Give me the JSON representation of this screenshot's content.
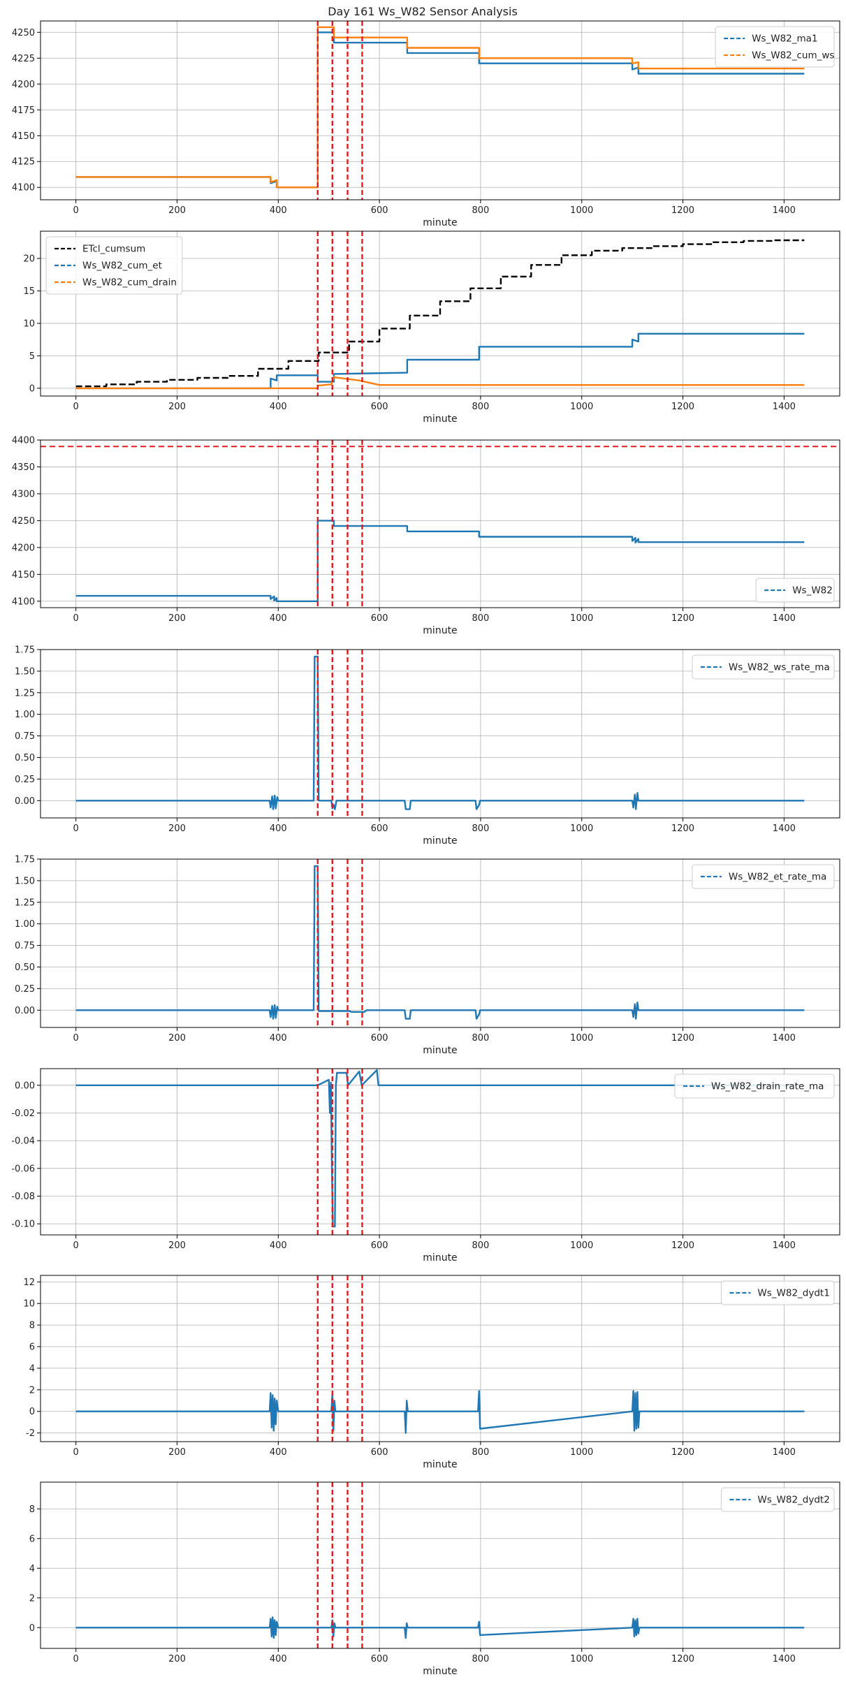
{
  "figure": {
    "title": "Day 161 Ws_W82 Sensor Analysis"
  },
  "colors": {
    "blue": "#1f77b4",
    "orange": "#ff7f0e",
    "black": "#000000",
    "red": "#e41a1c",
    "grid": "#b0b0b0"
  },
  "event_lines_x": [
    478,
    507,
    537,
    566
  ],
  "chart_data": [
    {
      "type": "line",
      "xlabel": "minute",
      "xlim": [
        -70,
        1510
      ],
      "ylim": [
        4088,
        4261
      ],
      "xticks": [
        0,
        200,
        400,
        600,
        800,
        1000,
        1200,
        1400
      ],
      "yticks": [
        4100,
        4125,
        4150,
        4175,
        4200,
        4225,
        4250
      ],
      "legend_loc": "upper right",
      "series": [
        {
          "name": "Ws_W82_ma1",
          "color": "blue",
          "x": [
            0,
            385,
            385,
            397,
            397,
            478,
            478,
            510,
            510,
            655,
            655,
            797,
            797,
            1100,
            1100,
            1112,
            1112,
            1440
          ],
          "y": [
            4110,
            4110,
            4104,
            4106,
            4100,
            4100,
            4250,
            4250,
            4240,
            4240,
            4230,
            4230,
            4220,
            4220,
            4214,
            4216,
            4210,
            4210
          ]
        },
        {
          "name": "Ws_W82_cum_ws",
          "color": "orange",
          "x": [
            0,
            385,
            385,
            397,
            397,
            478,
            478,
            510,
            510,
            655,
            655,
            797,
            797,
            1100,
            1100,
            1112,
            1112,
            1440
          ],
          "y": [
            4110,
            4110,
            4105,
            4107,
            4100,
            4100,
            4255,
            4255,
            4245,
            4245,
            4235,
            4235,
            4225,
            4225,
            4220,
            4221,
            4215,
            4215
          ]
        }
      ]
    },
    {
      "type": "line",
      "xlabel": "minute",
      "xlim": [
        -70,
        1510
      ],
      "ylim": [
        -1.2,
        24.2
      ],
      "xticks": [
        0,
        200,
        400,
        600,
        800,
        1000,
        1200,
        1400
      ],
      "yticks": [
        0,
        5,
        10,
        15,
        20
      ],
      "legend_loc": "upper left",
      "series": [
        {
          "name": "ETcl_cumsum",
          "color": "black",
          "x": [
            0,
            60,
            60,
            120,
            120,
            180,
            180,
            240,
            240,
            300,
            300,
            360,
            360,
            420,
            420,
            480,
            480,
            540,
            540,
            600,
            600,
            660,
            660,
            720,
            720,
            780,
            780,
            840,
            840,
            900,
            900,
            960,
            960,
            1020,
            1020,
            1080,
            1080,
            1140,
            1140,
            1200,
            1200,
            1260,
            1260,
            1320,
            1320,
            1380,
            1380,
            1440
          ],
          "y": [
            0.3,
            0.3,
            0.6,
            0.6,
            1.0,
            1.0,
            1.3,
            1.3,
            1.6,
            1.6,
            1.9,
            1.9,
            3.0,
            3.0,
            4.2,
            4.2,
            5.5,
            5.5,
            7.2,
            7.2,
            9.2,
            9.2,
            11.2,
            11.2,
            13.4,
            13.4,
            15.4,
            15.4,
            17.2,
            17.2,
            19.0,
            19.0,
            20.5,
            20.5,
            21.2,
            21.2,
            21.6,
            21.6,
            21.9,
            21.9,
            22.2,
            22.2,
            22.5,
            22.5,
            22.7,
            22.7,
            22.8,
            22.8
          ]
        },
        {
          "name": "Ws_W82_cum_et",
          "color": "blue",
          "x": [
            0,
            385,
            385,
            397,
            397,
            478,
            478,
            510,
            510,
            655,
            655,
            797,
            797,
            1100,
            1100,
            1112,
            1112,
            1440
          ],
          "y": [
            0,
            0,
            1.5,
            1.2,
            2.0,
            2.0,
            1.0,
            1.0,
            2.2,
            2.4,
            4.4,
            4.4,
            6.4,
            6.4,
            7.5,
            7.2,
            8.4,
            8.4
          ]
        },
        {
          "name": "Ws_W82_cum_drain",
          "color": "orange",
          "x": [
            0,
            478,
            478,
            505,
            510,
            560,
            600,
            1440
          ],
          "y": [
            0,
            0,
            0.4,
            0.6,
            1.7,
            1.2,
            0.5,
            0.5
          ]
        }
      ]
    },
    {
      "type": "line",
      "xlabel": "minute",
      "xlim": [
        -70,
        1510
      ],
      "ylim": [
        4088,
        4400
      ],
      "xticks": [
        0,
        200,
        400,
        600,
        800,
        1000,
        1200,
        1400
      ],
      "yticks": [
        4100,
        4150,
        4200,
        4250,
        4300,
        4350,
        4400
      ],
      "legend_loc": "lower right",
      "hline": 4388,
      "series": [
        {
          "name": "Ws_W82",
          "color": "blue",
          "x": [
            0,
            385,
            385,
            392,
            392,
            397,
            397,
            478,
            478,
            510,
            510,
            655,
            655,
            797,
            797,
            1100,
            1100,
            1106,
            1106,
            1112,
            1112,
            1440
          ],
          "y": [
            4110,
            4110,
            4104,
            4109,
            4101,
            4106,
            4100,
            4100,
            4250,
            4250,
            4240,
            4240,
            4230,
            4230,
            4220,
            4220,
            4212,
            4218,
            4209,
            4216,
            4210,
            4210
          ]
        }
      ]
    },
    {
      "type": "line",
      "xlabel": "minute",
      "xlim": [
        -70,
        1510
      ],
      "ylim": [
        -0.2,
        1.75
      ],
      "xticks": [
        0,
        200,
        400,
        600,
        800,
        1000,
        1200,
        1400
      ],
      "yticks": [
        0.0,
        0.25,
        0.5,
        0.75,
        1.0,
        1.25,
        1.5,
        1.75
      ],
      "legend_loc": "upper right",
      "series": [
        {
          "name": "Ws_W82_ws_rate_ma",
          "color": "blue",
          "x": [
            0,
            383,
            385,
            388,
            390,
            393,
            395,
            398,
            400,
            470,
            472,
            478,
            480,
            505,
            507,
            510,
            512,
            515,
            650,
            652,
            660,
            662,
            790,
            792,
            797,
            799,
            1100,
            1102,
            1105,
            1107,
            1110,
            1112,
            1440
          ],
          "y": [
            0,
            0,
            -0.08,
            0.05,
            -0.1,
            0.06,
            -0.09,
            0.04,
            0,
            0,
            1.67,
            1.67,
            0,
            0,
            -0.09,
            -0.05,
            -0.1,
            0,
            0,
            -0.1,
            -0.1,
            0,
            0,
            -0.1,
            -0.05,
            0,
            0,
            -0.08,
            0.07,
            -0.1,
            0.09,
            0,
            0
          ]
        }
      ]
    },
    {
      "type": "line",
      "xlabel": "minute",
      "xlim": [
        -70,
        1510
      ],
      "ylim": [
        -0.2,
        1.75
      ],
      "xticks": [
        0,
        200,
        400,
        600,
        800,
        1000,
        1200,
        1400
      ],
      "yticks": [
        0.0,
        0.25,
        0.5,
        0.75,
        1.0,
        1.25,
        1.5,
        1.75
      ],
      "legend_loc": "upper right",
      "series": [
        {
          "name": "Ws_W82_et_rate_ma",
          "color": "blue",
          "x": [
            0,
            383,
            385,
            388,
            390,
            393,
            395,
            398,
            400,
            470,
            472,
            478,
            480,
            540,
            545,
            570,
            575,
            650,
            652,
            660,
            662,
            790,
            792,
            797,
            799,
            1100,
            1102,
            1105,
            1107,
            1110,
            1112,
            1440
          ],
          "y": [
            0,
            0,
            -0.08,
            0.05,
            -0.1,
            0.06,
            -0.09,
            0.04,
            0,
            0,
            1.67,
            1.67,
            -0.01,
            -0.01,
            -0.02,
            -0.02,
            0,
            0,
            -0.1,
            -0.1,
            0,
            0,
            -0.1,
            -0.05,
            0,
            0,
            -0.08,
            0.07,
            -0.1,
            0.09,
            0,
            0
          ]
        }
      ]
    },
    {
      "type": "line",
      "xlabel": "minute",
      "xlim": [
        -70,
        1510
      ],
      "ylim": [
        -0.108,
        0.012
      ],
      "xticks": [
        0,
        200,
        400,
        600,
        800,
        1000,
        1200,
        1400
      ],
      "yticks": [
        0.0,
        -0.02,
        -0.04,
        -0.06,
        -0.08,
        -0.1
      ],
      "legend_loc": "upper right",
      "series": [
        {
          "name": "Ws_W82_drain_rate_ma",
          "color": "blue",
          "x": [
            0,
            478,
            500,
            502,
            504,
            506,
            508,
            512,
            514,
            516,
            520,
            535,
            538,
            560,
            565,
            595,
            598,
            1440
          ],
          "y": [
            0,
            0,
            0.004,
            -0.02,
            0.002,
            -0.06,
            -0.102,
            -0.102,
            0.0,
            0.009,
            0.009,
            0.009,
            0.0,
            0.01,
            0.0,
            0.011,
            0,
            0
          ]
        }
      ]
    },
    {
      "type": "line",
      "xlabel": "minute",
      "xlim": [
        -70,
        1510
      ],
      "ylim": [
        -2.8,
        12.6
      ],
      "xticks": [
        0,
        200,
        400,
        600,
        800,
        1000,
        1200,
        1400
      ],
      "yticks": [
        -2,
        0,
        2,
        4,
        6,
        8,
        10,
        12
      ],
      "legend_loc": "upper right",
      "series": [
        {
          "name": "Ws_W82_dydt1",
          "color": "blue",
          "x": [
            0,
            383,
            385,
            387,
            389,
            391,
            393,
            395,
            397,
            400,
            505,
            507,
            509,
            511,
            513,
            650,
            652,
            654,
            656,
            795,
            797,
            799,
            1100,
            1102,
            1104,
            1106,
            1108,
            1110,
            1112,
            1114,
            1440
          ],
          "y": [
            0,
            0,
            1.7,
            -1.5,
            1.5,
            -1.8,
            1.2,
            -1.2,
            1.0,
            0,
            0,
            1.6,
            -1.8,
            1.0,
            0,
            0,
            -2.0,
            1.0,
            0,
            0,
            1.9,
            -1.6,
            0,
            1.9,
            -1.8,
            1.7,
            -1.6,
            1.8,
            -1.5,
            0,
            0
          ]
        }
      ]
    },
    {
      "type": "line",
      "xlabel": "minute",
      "xlim": [
        -70,
        1510
      ],
      "ylim": [
        -1.4,
        9.8
      ],
      "xticks": [
        0,
        200,
        400,
        600,
        800,
        1000,
        1200,
        1400
      ],
      "yticks": [
        0,
        2,
        4,
        6,
        8
      ],
      "legend_loc": "upper right",
      "series": [
        {
          "name": "Ws_W82_dydt2",
          "color": "blue",
          "x": [
            0,
            383,
            385,
            387,
            389,
            391,
            393,
            395,
            397,
            400,
            505,
            507,
            509,
            511,
            513,
            650,
            652,
            654,
            656,
            795,
            797,
            799,
            1100,
            1102,
            1104,
            1106,
            1108,
            1110,
            1112,
            1114,
            1440
          ],
          "y": [
            0,
            0,
            0.6,
            -0.6,
            0.7,
            -0.7,
            0.5,
            -0.5,
            0.4,
            0,
            0,
            0.5,
            -0.6,
            0.3,
            0,
            0,
            -0.7,
            0.3,
            0,
            0,
            0.4,
            -0.5,
            0,
            0.6,
            -0.6,
            0.5,
            -0.5,
            0.6,
            -0.4,
            0,
            0
          ]
        }
      ]
    }
  ]
}
